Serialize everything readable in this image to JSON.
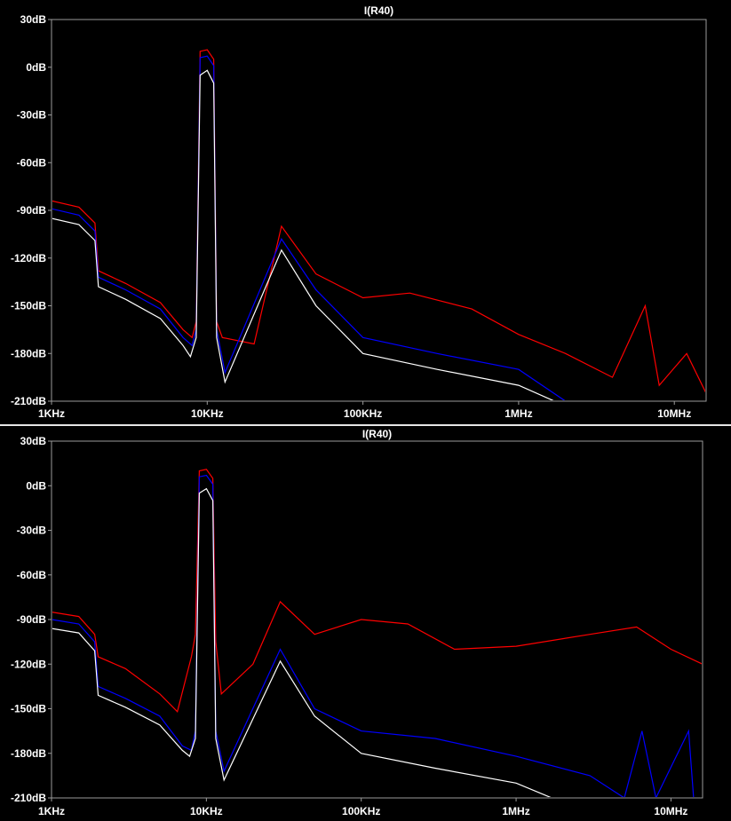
{
  "colors": {
    "background": "#000000",
    "frame": "#9a9a9a",
    "text": "#ffffff",
    "red": "#ff0000",
    "blue": "#0000ff",
    "white": "#ffffff"
  },
  "chart_data": [
    {
      "type": "line",
      "title": "I(R40)",
      "xlabel": "",
      "ylabel": "",
      "x_scale": "log",
      "xlim": [
        1000,
        16000000
      ],
      "ylim": [
        -210,
        30
      ],
      "x_ticks": [
        {
          "value": 1000,
          "label": "1KHz"
        },
        {
          "value": 10000,
          "label": "10KHz"
        },
        {
          "value": 100000,
          "label": "100KHz"
        },
        {
          "value": 1000000,
          "label": "1MHz"
        },
        {
          "value": 10000000,
          "label": "10MHz"
        }
      ],
      "y_ticks": [
        {
          "value": 30,
          "label": "30dB"
        },
        {
          "value": 0,
          "label": "0dB"
        },
        {
          "value": -30,
          "label": "-30dB"
        },
        {
          "value": -60,
          "label": "-60dB"
        },
        {
          "value": -90,
          "label": "-90dB"
        },
        {
          "value": -120,
          "label": "-120dB"
        },
        {
          "value": -150,
          "label": "-150dB"
        },
        {
          "value": -180,
          "label": "-180dB"
        },
        {
          "value": -210,
          "label": "-210dB"
        }
      ],
      "series": [
        {
          "color": "red",
          "points": [
            [
              1000,
              -84
            ],
            [
              1500,
              -88
            ],
            [
              1900,
              -98
            ],
            [
              2000,
              -128
            ],
            [
              3000,
              -136
            ],
            [
              5000,
              -148
            ],
            [
              7000,
              -165
            ],
            [
              8000,
              -170
            ],
            [
              8500,
              -160
            ],
            [
              9000,
              10
            ],
            [
              10000,
              11
            ],
            [
              11000,
              5
            ],
            [
              11500,
              -160
            ],
            [
              12500,
              -170
            ],
            [
              20000,
              -174
            ],
            [
              30000,
              -100
            ],
            [
              50000,
              -130
            ],
            [
              100000,
              -145
            ],
            [
              200000,
              -142
            ],
            [
              500000,
              -152
            ],
            [
              1000000,
              -168
            ],
            [
              2000000,
              -180
            ],
            [
              4000000,
              -195
            ],
            [
              6500000,
              -150
            ],
            [
              8000000,
              -200
            ],
            [
              12000000,
              -180
            ],
            [
              16000000,
              -205
            ]
          ]
        },
        {
          "color": "blue",
          "points": [
            [
              1000,
              -89
            ],
            [
              1500,
              -93
            ],
            [
              1900,
              -103
            ],
            [
              2000,
              -132
            ],
            [
              3000,
              -140
            ],
            [
              5000,
              -152
            ],
            [
              7000,
              -170
            ],
            [
              8000,
              -175
            ],
            [
              8500,
              -165
            ],
            [
              9000,
              6
            ],
            [
              10000,
              7
            ],
            [
              11000,
              1
            ],
            [
              11500,
              -165
            ],
            [
              13000,
              -192
            ],
            [
              30000,
              -108
            ],
            [
              50000,
              -140
            ],
            [
              100000,
              -170
            ],
            [
              300000,
              -180
            ],
            [
              1000000,
              -190
            ],
            [
              2000000,
              -210
            ]
          ]
        },
        {
          "color": "white",
          "points": [
            [
              1000,
              -95
            ],
            [
              1500,
              -99
            ],
            [
              1900,
              -109
            ],
            [
              2000,
              -138
            ],
            [
              3000,
              -146
            ],
            [
              5000,
              -158
            ],
            [
              7000,
              -175
            ],
            [
              7800,
              -182
            ],
            [
              8500,
              -170
            ],
            [
              9000,
              -5
            ],
            [
              10000,
              -2
            ],
            [
              11000,
              -10
            ],
            [
              11500,
              -170
            ],
            [
              13000,
              -198
            ],
            [
              30000,
              -115
            ],
            [
              50000,
              -150
            ],
            [
              100000,
              -180
            ],
            [
              300000,
              -190
            ],
            [
              1000000,
              -200
            ],
            [
              1700000,
              -210
            ]
          ]
        }
      ]
    },
    {
      "type": "line",
      "title": "I(R40)",
      "xlabel": "",
      "ylabel": "",
      "x_scale": "log",
      "xlim": [
        1000,
        16000000
      ],
      "ylim": [
        -210,
        30
      ],
      "x_ticks": [
        {
          "value": 1000,
          "label": "1KHz"
        },
        {
          "value": 10000,
          "label": "10KHz"
        },
        {
          "value": 100000,
          "label": "100KHz"
        },
        {
          "value": 1000000,
          "label": "1MHz"
        },
        {
          "value": 10000000,
          "label": "10MHz"
        }
      ],
      "y_ticks": [
        {
          "value": 30,
          "label": "30dB"
        },
        {
          "value": 0,
          "label": "0dB"
        },
        {
          "value": -30,
          "label": "-30dB"
        },
        {
          "value": -60,
          "label": "-60dB"
        },
        {
          "value": -90,
          "label": "-90dB"
        },
        {
          "value": -120,
          "label": "-120dB"
        },
        {
          "value": -150,
          "label": "-150dB"
        },
        {
          "value": -180,
          "label": "-180dB"
        },
        {
          "value": -210,
          "label": "-210dB"
        }
      ],
      "series": [
        {
          "color": "red",
          "points": [
            [
              1000,
              -85
            ],
            [
              1500,
              -88
            ],
            [
              1900,
              -100
            ],
            [
              2000,
              -115
            ],
            [
              3000,
              -123
            ],
            [
              5000,
              -140
            ],
            [
              6500,
              -152
            ],
            [
              8000,
              -115
            ],
            [
              8500,
              -100
            ],
            [
              9000,
              10
            ],
            [
              10000,
              11
            ],
            [
              11000,
              5
            ],
            [
              11500,
              -105
            ],
            [
              12500,
              -140
            ],
            [
              20000,
              -120
            ],
            [
              30000,
              -78
            ],
            [
              50000,
              -100
            ],
            [
              100000,
              -90
            ],
            [
              200000,
              -93
            ],
            [
              400000,
              -110
            ],
            [
              1000000,
              -108
            ],
            [
              3000000,
              -100
            ],
            [
              6000000,
              -95
            ],
            [
              10000000,
              -110
            ],
            [
              16000000,
              -120
            ]
          ]
        },
        {
          "color": "blue",
          "points": [
            [
              1000,
              -90
            ],
            [
              1500,
              -93
            ],
            [
              1900,
              -105
            ],
            [
              2000,
              -135
            ],
            [
              3000,
              -143
            ],
            [
              5000,
              -155
            ],
            [
              7000,
              -175
            ],
            [
              8000,
              -178
            ],
            [
              8500,
              -165
            ],
            [
              9000,
              6
            ],
            [
              10000,
              7
            ],
            [
              11000,
              1
            ],
            [
              11500,
              -165
            ],
            [
              13000,
              -192
            ],
            [
              30000,
              -110
            ],
            [
              50000,
              -150
            ],
            [
              100000,
              -165
            ],
            [
              300000,
              -170
            ],
            [
              1000000,
              -182
            ],
            [
              3000000,
              -195
            ],
            [
              5000000,
              -210
            ],
            [
              6500000,
              -165
            ],
            [
              8000000,
              -210
            ],
            [
              13000000,
              -165
            ],
            [
              14000000,
              -210
            ]
          ]
        },
        {
          "color": "white",
          "points": [
            [
              1000,
              -96
            ],
            [
              1500,
              -99
            ],
            [
              1900,
              -111
            ],
            [
              2000,
              -141
            ],
            [
              3000,
              -149
            ],
            [
              5000,
              -161
            ],
            [
              7000,
              -178
            ],
            [
              7800,
              -182
            ],
            [
              8500,
              -170
            ],
            [
              9000,
              -5
            ],
            [
              10000,
              -2
            ],
            [
              11000,
              -10
            ],
            [
              11500,
              -170
            ],
            [
              13000,
              -198
            ],
            [
              30000,
              -118
            ],
            [
              50000,
              -155
            ],
            [
              100000,
              -180
            ],
            [
              300000,
              -190
            ],
            [
              1000000,
              -200
            ],
            [
              1700000,
              -210
            ]
          ]
        }
      ]
    }
  ]
}
